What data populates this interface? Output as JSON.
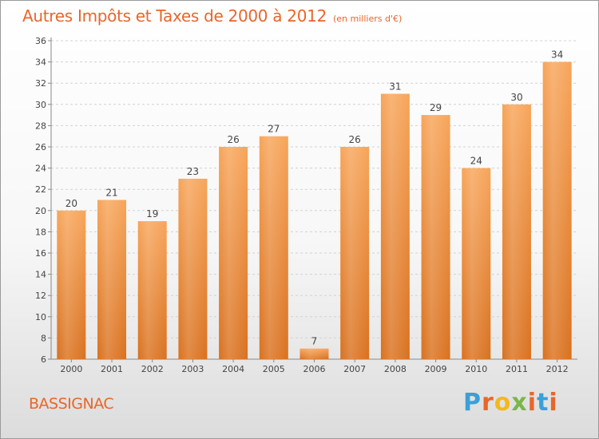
{
  "header": {
    "title": "Autres Impôts et Taxes de 2000 à 2012",
    "unit": "(en milliers d'€)"
  },
  "footer": {
    "commune": "BASSIGNAC",
    "logo": {
      "letters": [
        "P",
        "r",
        "o",
        "x",
        "i",
        "t",
        "i"
      ],
      "colors": [
        "#3aa0d8",
        "#e8662a",
        "#f2b91c",
        "#7ab648",
        "#e8662a",
        "#3aa0d8",
        "#e8662a"
      ]
    }
  },
  "chart_data": {
    "type": "bar",
    "categories": [
      "2000",
      "2001",
      "2002",
      "2003",
      "2004",
      "2005",
      "2006",
      "2007",
      "2008",
      "2009",
      "2010",
      "2011",
      "2012"
    ],
    "values": [
      20,
      21,
      19,
      23,
      26,
      27,
      7,
      26,
      31,
      29,
      24,
      30,
      34
    ],
    "data_labels": [
      "20",
      "21",
      "19",
      "23",
      "26",
      "27",
      "7",
      "26",
      "31",
      "29",
      "24",
      "30",
      "34"
    ],
    "y_ticks": [
      "6",
      "8",
      "10",
      "12",
      "14",
      "16",
      "18",
      "20",
      "22",
      "24",
      "26",
      "28",
      "30",
      "32",
      "34",
      "36"
    ],
    "title": "Autres Impôts et Taxes de 2000 à 2012",
    "ylim": [
      6,
      36
    ],
    "grid": true,
    "bar_color_top": "#f7a55a",
    "bar_color_bottom": "#d9711f"
  }
}
